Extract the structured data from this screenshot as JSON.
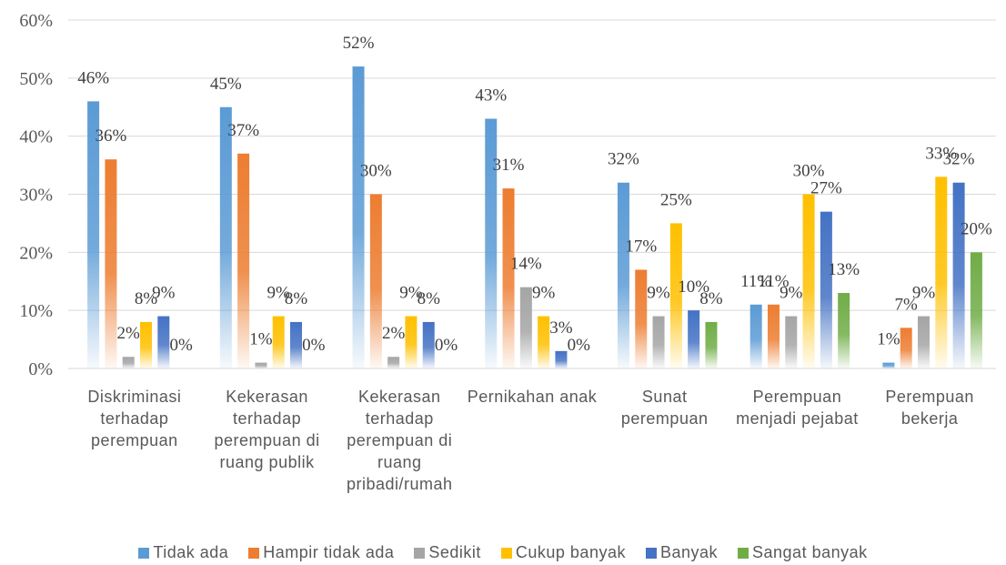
{
  "chart_data": {
    "type": "bar",
    "categories": [
      "Diskriminasi terhadap perempuan",
      "Kekerasan terhadap perempuan di ruang publik",
      "Kekerasan terhadap perempuan di ruang pribadi/rumah",
      "Pernikahan anak",
      "Sunat perempuan",
      "Perempuan menjadi pejabat",
      "Perempuan bekerja"
    ],
    "series": [
      {
        "name": "Tidak ada",
        "color": "#5b9bd5",
        "values": [
          46,
          45,
          52,
          43,
          32,
          11,
          1
        ],
        "value_labels": [
          "46%",
          "45%",
          "52%",
          "43%",
          "32%",
          "11%",
          "1%"
        ]
      },
      {
        "name": "Hampir tidak ada",
        "color": "#ed7d31",
        "values": [
          36,
          37,
          30,
          31,
          17,
          11,
          7
        ],
        "value_labels": [
          "36%",
          "37%",
          "30%",
          "31%",
          "17%",
          "11%",
          "7%"
        ]
      },
      {
        "name": "Sedikit",
        "color": "#a5a5a5",
        "values": [
          2,
          1,
          2,
          14,
          9,
          9,
          9
        ],
        "value_labels": [
          "2%",
          "1%",
          "2%",
          "14%",
          "9%",
          "9%",
          "9%"
        ]
      },
      {
        "name": "Cukup banyak",
        "color": "#ffc000",
        "values": [
          8,
          9,
          9,
          9,
          25,
          30,
          33
        ],
        "value_labels": [
          "8%",
          "9%",
          "9%",
          "9%",
          "25%",
          "30%",
          "33%"
        ]
      },
      {
        "name": "Banyak",
        "color": "#4472c4",
        "values": [
          9,
          8,
          8,
          3,
          10,
          27,
          32
        ],
        "value_labels": [
          "9%",
          "8%",
          "8%",
          "3%",
          "10%",
          "27%",
          "32%"
        ]
      },
      {
        "name": "Sangat banyak",
        "color": "#70ad47",
        "values": [
          0,
          0,
          0,
          0,
          8,
          13,
          20
        ],
        "value_labels": [
          "0%",
          "0%",
          "0%",
          "0%",
          "8%",
          "13%",
          "20%"
        ]
      }
    ],
    "ylim": [
      0,
      60
    ],
    "yticks": [
      {
        "value": 0,
        "label": "0%"
      },
      {
        "value": 10,
        "label": "10%"
      },
      {
        "value": 20,
        "label": "20%"
      },
      {
        "value": 30,
        "label": "30%"
      },
      {
        "value": 40,
        "label": "40%"
      },
      {
        "value": 50,
        "label": "50%"
      },
      {
        "value": 60,
        "label": "60%"
      }
    ],
    "grid": true,
    "legend": "bottom"
  }
}
